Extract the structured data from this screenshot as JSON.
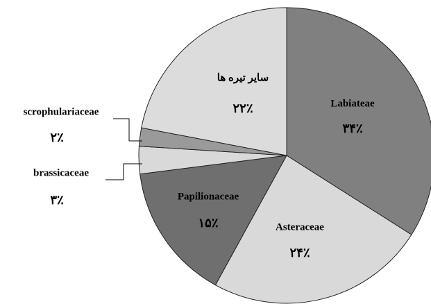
{
  "chart_data": {
    "type": "pie",
    "categories": [
      "Labiateae",
      "Asteraceae",
      "Papilionaceae",
      "brassicaceae",
      "scrophulariaceae",
      "سایر تیره ها"
    ],
    "values": [
      34,
      24,
      15,
      3,
      2,
      22
    ],
    "value_labels": [
      "۳۴٪",
      "۲۴٪",
      "۱۵٪",
      "۳٪",
      "۲٪",
      "۲۲٪"
    ],
    "colors": [
      "#808080",
      "#d9d9d9",
      "#6f6f6f",
      "#d9d9d9",
      "#9a9a9a",
      "#dcdcdc"
    ]
  }
}
